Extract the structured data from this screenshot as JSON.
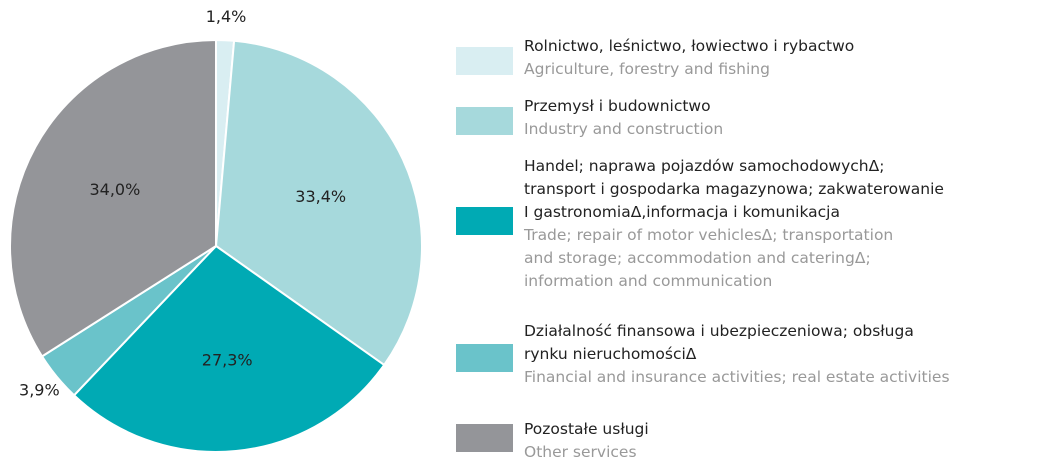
{
  "chart_data": {
    "type": "pie",
    "categories": [
      "Rolnictwo, leśnictwo, łowiectwo i rybactwo",
      "Przemysł i budownictwo",
      "Handel; naprawa pojazdów samochodowychΔ;\ntransport i gospodarka magazynowa; zakwaterowanie\nI gastronomiaΔ,informacja i komunikacja",
      "Działalność finansowa i ubezpieczeniowa; obsługa\nrynku nieruchomościΔ",
      "Pozostałe usługi"
    ],
    "categories_en": [
      "Agriculture, forestry and fishing",
      "Industry and construction",
      "Trade; repair of motor vehiclesΔ; transportation\nand storage; accommodation and cateringΔ;\ninformation and communication",
      "Financial and insurance activities; real estate activities",
      "Other services"
    ],
    "values": [
      1.4,
      33.4,
      27.3,
      3.9,
      34.0
    ],
    "value_labels": [
      "1,4%",
      "33,4%",
      "27,3%",
      "3,9%",
      "34,0%"
    ],
    "colors": [
      "#d9eef2",
      "#a6d9dc",
      "#00aab4",
      "#6ac3ca",
      "#949599"
    ]
  }
}
